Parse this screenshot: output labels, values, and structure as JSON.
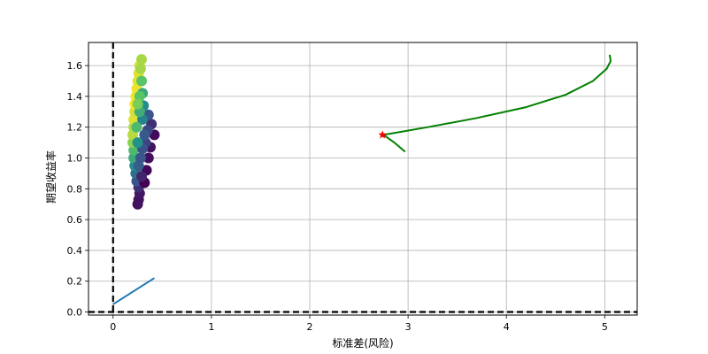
{
  "chart_data": {
    "type": "scatter",
    "xlabel": "标准差(风险)",
    "ylabel": "期望收益率",
    "xlim": [
      -0.25,
      5.33
    ],
    "ylim": [
      -0.02,
      1.75
    ],
    "x_ticks": [
      "0",
      "1",
      "2",
      "3",
      "4",
      "5"
    ],
    "y_ticks": [
      "0.0",
      "0.2",
      "0.4",
      "0.6",
      "0.8",
      "1.0",
      "1.2",
      "1.4",
      "1.6"
    ],
    "grid": true,
    "colormap": "viridis",
    "reference_lines": {
      "x": 0,
      "y": 0,
      "style": "dashed",
      "color": "#000000"
    },
    "series": [
      {
        "type": "line",
        "color": "#1f77b4",
        "points": [
          [
            0.0,
            0.05
          ],
          [
            0.42,
            0.22
          ]
        ]
      },
      {
        "type": "line",
        "color": "#008000",
        "points": [
          [
            2.97,
            1.04
          ],
          [
            2.86,
            1.1
          ],
          [
            2.75,
            1.15
          ],
          [
            3.2,
            1.2
          ],
          [
            3.7,
            1.26
          ],
          [
            4.2,
            1.33
          ],
          [
            4.6,
            1.41
          ],
          [
            4.88,
            1.5
          ],
          [
            5.02,
            1.58
          ],
          [
            5.06,
            1.63
          ],
          [
            5.05,
            1.67
          ]
        ]
      },
      {
        "type": "marker",
        "marker": "star",
        "color": "#ff0000",
        "points": [
          [
            2.74,
            1.15
          ]
        ]
      },
      {
        "type": "scatter",
        "colormap": "viridis",
        "points": [
          [
            0.25,
            0.7
          ],
          [
            0.26,
            0.73
          ],
          [
            0.27,
            0.77
          ],
          [
            0.26,
            0.81
          ],
          [
            0.24,
            0.85
          ],
          [
            0.23,
            0.9
          ],
          [
            0.22,
            0.95
          ],
          [
            0.21,
            1.0
          ],
          [
            0.21,
            1.05
          ],
          [
            0.2,
            1.1
          ],
          [
            0.2,
            1.15
          ],
          [
            0.21,
            1.2
          ],
          [
            0.21,
            1.25
          ],
          [
            0.22,
            1.3
          ],
          [
            0.22,
            1.35
          ],
          [
            0.23,
            1.4
          ],
          [
            0.24,
            1.45
          ],
          [
            0.25,
            1.5
          ],
          [
            0.26,
            1.55
          ],
          [
            0.27,
            1.6
          ],
          [
            0.32,
            0.84
          ],
          [
            0.34,
            0.92
          ],
          [
            0.36,
            1.0
          ],
          [
            0.38,
            1.07
          ],
          [
            0.42,
            1.15
          ],
          [
            0.39,
            1.22
          ],
          [
            0.36,
            1.28
          ],
          [
            0.31,
            1.34
          ],
          [
            0.3,
            1.42
          ],
          [
            0.29,
            1.5
          ],
          [
            0.28,
            1.58
          ],
          [
            0.29,
            1.64
          ],
          [
            0.33,
            1.1
          ],
          [
            0.3,
            1.25
          ],
          [
            0.27,
            1.3
          ],
          [
            0.26,
            0.95
          ],
          [
            0.29,
            0.88
          ],
          [
            0.35,
            1.18
          ],
          [
            0.28,
            1.0
          ],
          [
            0.3,
            1.06
          ],
          [
            0.24,
            1.2
          ],
          [
            0.27,
            1.4
          ],
          [
            0.25,
            1.35
          ],
          [
            0.32,
            1.15
          ],
          [
            0.25,
            1.1
          ]
        ]
      }
    ]
  }
}
